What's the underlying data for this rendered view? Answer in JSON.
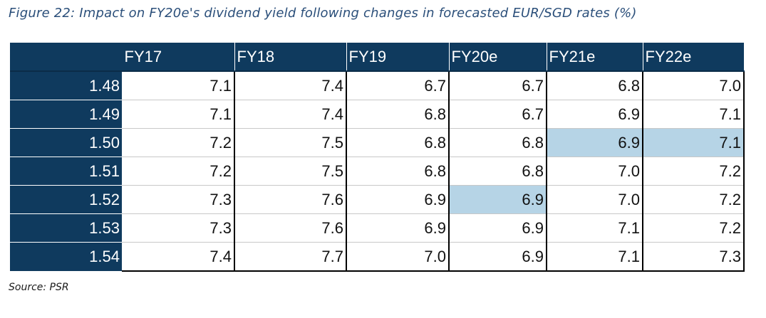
{
  "figure": {
    "title": "Figure 22: Impact on FY20e's dividend yield following changes in forecasted EUR/SGD rates (%)",
    "source": "Source: PSR"
  },
  "table": {
    "corner": "",
    "columns": [
      "FY17",
      "FY18",
      "FY19",
      "FY20e",
      "FY21e",
      "FY22e"
    ],
    "rows": [
      {
        "rate": "1.48",
        "values": [
          "7.1",
          "7.4",
          "6.7",
          "6.7",
          "6.8",
          "7.0"
        ]
      },
      {
        "rate": "1.49",
        "values": [
          "7.1",
          "7.4",
          "6.8",
          "6.7",
          "6.9",
          "7.1"
        ]
      },
      {
        "rate": "1.50",
        "values": [
          "7.2",
          "7.5",
          "6.8",
          "6.8",
          "6.9",
          "7.1"
        ]
      },
      {
        "rate": "1.51",
        "values": [
          "7.2",
          "7.5",
          "6.8",
          "6.8",
          "7.0",
          "7.2"
        ]
      },
      {
        "rate": "1.52",
        "values": [
          "7.3",
          "7.6",
          "6.9",
          "6.9",
          "7.0",
          "7.2"
        ]
      },
      {
        "rate": "1.53",
        "values": [
          "7.3",
          "7.6",
          "6.9",
          "6.9",
          "7.1",
          "7.2"
        ]
      },
      {
        "rate": "1.54",
        "values": [
          "7.4",
          "7.7",
          "7.0",
          "6.9",
          "7.1",
          "7.3"
        ]
      }
    ],
    "highlighted_cells": [
      [
        2,
        4
      ],
      [
        2,
        5
      ],
      [
        4,
        3
      ]
    ]
  },
  "colors": {
    "header_bg": "#0f3a5e",
    "highlight_bg": "#b6d4e6",
    "title_text": "#2b4f7a"
  }
}
